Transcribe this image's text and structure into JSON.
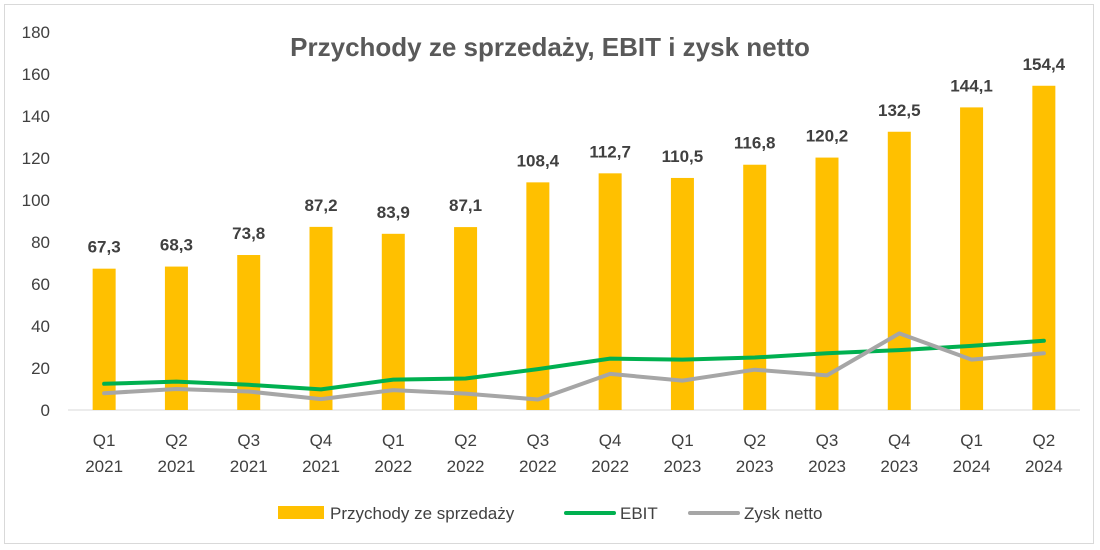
{
  "chart_data": {
    "type": "bar",
    "title": "Przychody ze sprzedaży, EBIT i zysk netto",
    "categories": [
      "Q1 2021",
      "Q2 2021",
      "Q3 2021",
      "Q4 2021",
      "Q1 2022",
      "Q2 2022",
      "Q3 2022",
      "Q4 2022",
      "Q1 2023",
      "Q2 2023",
      "Q3 2023",
      "Q4 2023",
      "Q1 2024",
      "Q2 2024"
    ],
    "category_lines": [
      [
        "Q1",
        "2021"
      ],
      [
        "Q2",
        "2021"
      ],
      [
        "Q3",
        "2021"
      ],
      [
        "Q4",
        "2021"
      ],
      [
        "Q1",
        "2022"
      ],
      [
        "Q2",
        "2022"
      ],
      [
        "Q3",
        "2022"
      ],
      [
        "Q4",
        "2022"
      ],
      [
        "Q1",
        "2023"
      ],
      [
        "Q2",
        "2023"
      ],
      [
        "Q3",
        "2023"
      ],
      [
        "Q4",
        "2023"
      ],
      [
        "Q1",
        "2024"
      ],
      [
        "Q2",
        "2024"
      ]
    ],
    "series": [
      {
        "name": "Przychody ze sprzedaży",
        "type": "bar",
        "color": "#FFC000",
        "values": [
          67.3,
          68.3,
          73.8,
          87.2,
          83.9,
          87.1,
          108.4,
          112.7,
          110.5,
          116.8,
          120.2,
          132.5,
          144.1,
          154.4
        ],
        "labels": [
          "67,3",
          "68,3",
          "73,8",
          "87,2",
          "83,9",
          "87,1",
          "108,4",
          "112,7",
          "110,5",
          "116,8",
          "120,2",
          "132,5",
          "144,1",
          "154,4"
        ]
      },
      {
        "name": "EBIT",
        "type": "line",
        "color": "#00B050",
        "values": [
          12.5,
          13.5,
          12.0,
          9.8,
          14.5,
          15.0,
          19.5,
          24.5,
          24.0,
          25.0,
          27.0,
          28.5,
          30.5,
          33.0
        ]
      },
      {
        "name": "Zysk netto",
        "type": "line",
        "color": "#A6A6A6",
        "values": [
          8.0,
          10.0,
          8.8,
          5.2,
          9.5,
          7.8,
          5.0,
          17.2,
          14.0,
          19.2,
          16.5,
          36.5,
          24.0,
          27.0
        ]
      }
    ],
    "yticks": [
      "0",
      "20",
      "40",
      "60",
      "80",
      "100",
      "120",
      "140",
      "160",
      "180"
    ],
    "ylim": [
      0,
      180
    ],
    "grid": false,
    "legend_position": "bottom"
  }
}
